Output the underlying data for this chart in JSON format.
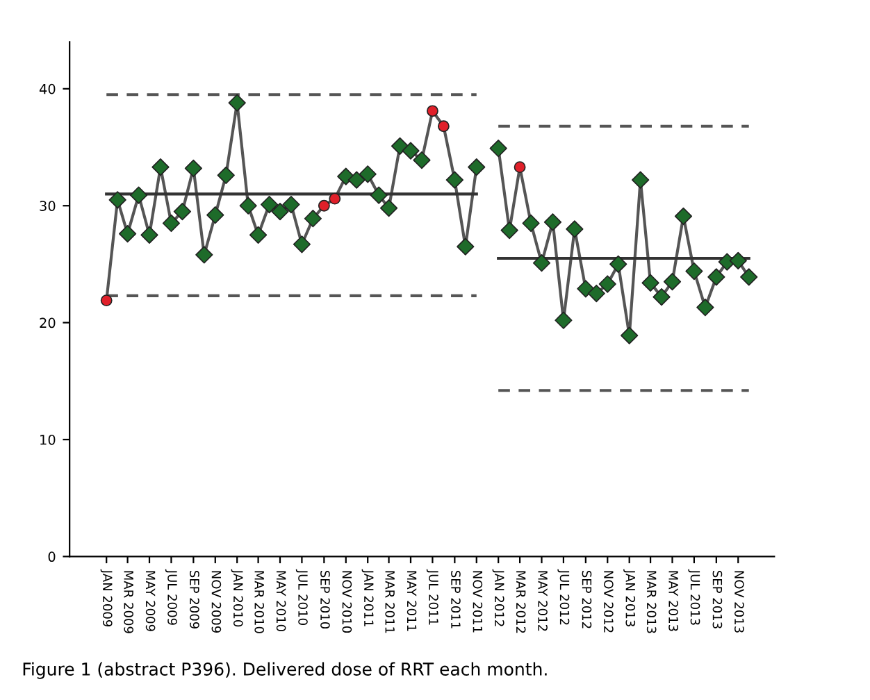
{
  "chart_data": {
    "type": "line",
    "annotations": [
      "Figure 1 (abstract P396). Delivered dose of RRT each month."
    ],
    "xlim": [
      "2008-09-20",
      "2014-02-10"
    ],
    "ylim": [
      0,
      44
    ],
    "yticks": [
      0,
      10,
      20,
      30,
      40
    ],
    "xticks": [
      {
        "value": "2009-01",
        "label": "JAN 2009"
      },
      {
        "value": "2009-03",
        "label": "MAR 2009"
      },
      {
        "value": "2009-05",
        "label": "MAY 2009"
      },
      {
        "value": "2009-07",
        "label": "JUL 2009"
      },
      {
        "value": "2009-09",
        "label": "SEP 2009"
      },
      {
        "value": "2009-11",
        "label": "NOV 2009"
      },
      {
        "value": "2010-01",
        "label": "JAN 2010"
      },
      {
        "value": "2010-03",
        "label": "MAR 2010"
      },
      {
        "value": "2010-05",
        "label": "MAY 2010"
      },
      {
        "value": "2010-07",
        "label": "JUL 2010"
      },
      {
        "value": "2010-09",
        "label": "SEP 2010"
      },
      {
        "value": "2010-11",
        "label": "NOV 2010"
      },
      {
        "value": "2011-01",
        "label": "JAN 2011"
      },
      {
        "value": "2011-03",
        "label": "MAR 2011"
      },
      {
        "value": "2011-05",
        "label": "MAY 2011"
      },
      {
        "value": "2011-07",
        "label": "JUL 2011"
      },
      {
        "value": "2011-09",
        "label": "SEP 2011"
      },
      {
        "value": "2011-11",
        "label": "NOV 2011"
      },
      {
        "value": "2012-01",
        "label": "JAN 2012"
      },
      {
        "value": "2012-03",
        "label": "MAR 2012"
      },
      {
        "value": "2012-05",
        "label": "MAY 2012"
      },
      {
        "value": "2012-07",
        "label": "JUL 2012"
      },
      {
        "value": "2012-09",
        "label": "SEP 2012"
      },
      {
        "value": "2012-11",
        "label": "NOV 2012"
      },
      {
        "value": "2013-01",
        "label": "JAN 2013"
      },
      {
        "value": "2013-03",
        "label": "MAR 2013"
      },
      {
        "value": "2013-05",
        "label": "MAY 2013"
      },
      {
        "value": "2013-07",
        "label": "JUL 2013"
      },
      {
        "value": "2013-09",
        "label": "SEP 2013"
      },
      {
        "value": "2013-11",
        "label": "NOV 2013"
      }
    ],
    "x": [
      "2009-01",
      "2009-02",
      "2009-03",
      "2009-04",
      "2009-05",
      "2009-06",
      "2009-07",
      "2009-08",
      "2009-09",
      "2009-10",
      "2009-11",
      "2009-12",
      "2010-01",
      "2010-02",
      "2010-03",
      "2010-04",
      "2010-05",
      "2010-06",
      "2010-07",
      "2010-08",
      "2010-09",
      "2010-10",
      "2010-11",
      "2010-12",
      "2011-01",
      "2011-02",
      "2011-03",
      "2011-04",
      "2011-05",
      "2011-06",
      "2011-07",
      "2011-08",
      "2011-09",
      "2011-10",
      "2011-11",
      "2011-12",
      "2012-01",
      "2012-02",
      "2012-03",
      "2012-04",
      "2012-05",
      "2012-06",
      "2012-07",
      "2012-08",
      "2012-09",
      "2012-10",
      "2012-11",
      "2012-12",
      "2013-01",
      "2013-02",
      "2013-03",
      "2013-04",
      "2013-05",
      "2013-06",
      "2013-07",
      "2013-08",
      "2013-09",
      "2013-10",
      "2013-11",
      "2013-12"
    ],
    "grid": false,
    "legend": false,
    "series": [
      {
        "color": "#555555",
        "marker": "none",
        "line_style": "solid",
        "values": [
          21.9,
          30.5,
          27.6,
          30.9,
          27.5,
          33.3,
          28.5,
          29.5,
          33.2,
          25.8,
          29.2,
          32.6,
          38.8,
          30.0,
          27.5,
          30.1,
          29.5,
          30.1,
          26.7,
          28.9,
          30.0,
          30.6,
          32.5,
          32.2,
          32.7,
          30.9,
          29.8,
          35.1,
          34.7,
          33.9,
          38.1,
          36.8,
          32.2,
          26.5,
          33.3,
          null,
          34.9,
          27.9,
          33.3,
          28.5,
          25.1,
          28.6,
          20.2,
          28.0,
          22.9,
          22.5,
          23.3,
          25.0,
          18.9,
          32.2,
          23.4,
          22.2,
          23.5,
          29.1,
          24.4,
          21.3,
          23.9,
          25.2,
          25.3,
          23.9
        ]
      },
      {
        "type": "scatter",
        "color": "#1e6b2a",
        "marker": "diamond",
        "values": [
          null,
          30.5,
          27.6,
          30.9,
          27.5,
          33.3,
          28.5,
          29.5,
          33.2,
          25.8,
          29.2,
          32.6,
          38.8,
          30.0,
          27.5,
          30.1,
          29.5,
          30.1,
          26.7,
          28.9,
          null,
          null,
          32.5,
          32.2,
          32.7,
          30.9,
          29.8,
          35.1,
          34.7,
          33.9,
          null,
          null,
          32.2,
          26.5,
          33.3,
          null,
          34.9,
          27.9,
          null,
          28.5,
          25.1,
          28.6,
          20.2,
          28.0,
          22.9,
          22.5,
          23.3,
          25.0,
          18.9,
          32.2,
          23.4,
          22.2,
          23.5,
          29.1,
          24.4,
          21.3,
          23.9,
          25.2,
          25.3,
          23.9
        ]
      },
      {
        "type": "scatter",
        "color": "#e0202a",
        "marker": "circle",
        "values": [
          21.9,
          null,
          null,
          null,
          null,
          null,
          null,
          null,
          null,
          null,
          null,
          null,
          null,
          null,
          null,
          null,
          null,
          null,
          null,
          null,
          30.0,
          30.6,
          null,
          null,
          null,
          null,
          null,
          null,
          null,
          null,
          38.1,
          36.8,
          null,
          null,
          null,
          null,
          null,
          null,
          33.3,
          null,
          null,
          null,
          null,
          null,
          null,
          null,
          null,
          null,
          null,
          null,
          null,
          null,
          null,
          null,
          null,
          null,
          null,
          null,
          null,
          null
        ]
      },
      {
        "type": "line",
        "color": "#333333",
        "marker": "none",
        "line_style": "solid",
        "x": [
          "2009-01",
          "2011-11"
        ],
        "values": [
          31.0,
          31.0
        ]
      },
      {
        "type": "line",
        "color": "#555555",
        "marker": "none",
        "line_style": "dashed",
        "x": [
          "2009-01",
          "2011-11"
        ],
        "values": [
          39.5,
          39.5
        ]
      },
      {
        "type": "line",
        "color": "#555555",
        "marker": "none",
        "line_style": "dashed",
        "x": [
          "2009-01",
          "2011-11"
        ],
        "values": [
          22.3,
          22.3
        ]
      },
      {
        "type": "line",
        "color": "#333333",
        "marker": "none",
        "line_style": "solid",
        "x": [
          "2012-01",
          "2013-12"
        ],
        "values": [
          25.5,
          25.5
        ]
      },
      {
        "type": "line",
        "color": "#555555",
        "marker": "none",
        "line_style": "dashed",
        "x": [
          "2012-01",
          "2013-12"
        ],
        "values": [
          36.8,
          36.8
        ]
      },
      {
        "type": "line",
        "color": "#555555",
        "marker": "none",
        "line_style": "dashed",
        "x": [
          "2012-01",
          "2013-12"
        ],
        "values": [
          14.2,
          14.2
        ]
      }
    ]
  }
}
